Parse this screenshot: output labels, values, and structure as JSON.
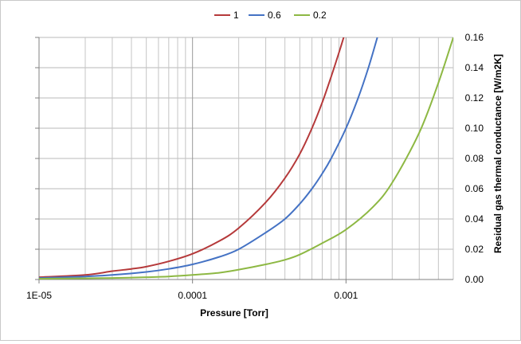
{
  "chart_data": {
    "type": "line",
    "title": "",
    "xlabel": "Pressure [Torr]",
    "ylabel": "Residual gas thermal conductance  [W/m2K]",
    "x_scale": "log",
    "xlim": [
      1e-05,
      0.005
    ],
    "ylim": [
      0,
      0.16
    ],
    "x_ticks": [
      {
        "value": 1e-05,
        "label": "1E-05"
      },
      {
        "value": 0.0001,
        "label": "0.0001"
      },
      {
        "value": 0.001,
        "label": "0.001"
      }
    ],
    "y_ticks": [
      {
        "value": 0.0,
        "label": "0.00"
      },
      {
        "value": 0.02,
        "label": "0.02"
      },
      {
        "value": 0.04,
        "label": "0.04"
      },
      {
        "value": 0.06,
        "label": "0.06"
      },
      {
        "value": 0.08,
        "label": "0.08"
      },
      {
        "value": 0.1,
        "label": "0.10"
      },
      {
        "value": 0.12,
        "label": "0.12"
      },
      {
        "value": 0.14,
        "label": "0.14"
      },
      {
        "value": 0.16,
        "label": "0.16"
      }
    ],
    "grid": true,
    "legend_position": "top-center",
    "y_axis_side": "right",
    "series": [
      {
        "name": "1",
        "color": "#b5393a",
        "points": [
          [
            1e-05,
            0.0015
          ],
          [
            2e-05,
            0.003
          ],
          [
            3e-05,
            0.0055
          ],
          [
            4e-05,
            0.007
          ],
          [
            5e-05,
            0.0085
          ],
          [
            7e-05,
            0.012
          ],
          [
            0.0001,
            0.017
          ],
          [
            0.00015,
            0.0255
          ],
          [
            0.0002,
            0.034
          ],
          [
            0.0003,
            0.051
          ],
          [
            0.0004,
            0.067
          ],
          [
            0.0005,
            0.083
          ],
          [
            0.0006,
            0.1
          ],
          [
            0.0007,
            0.117
          ],
          [
            0.0008,
            0.134
          ],
          [
            0.0009,
            0.15
          ],
          [
            0.001,
            0.165
          ]
        ]
      },
      {
        "name": "0.6",
        "color": "#4472c4",
        "points": [
          [
            1e-05,
            0.001
          ],
          [
            2e-05,
            0.002
          ],
          [
            3e-05,
            0.003
          ],
          [
            5e-05,
            0.005
          ],
          [
            7e-05,
            0.007
          ],
          [
            0.0001,
            0.01
          ],
          [
            0.00015,
            0.015
          ],
          [
            0.0002,
            0.02
          ],
          [
            0.0003,
            0.031
          ],
          [
            0.0004,
            0.04
          ],
          [
            0.0005,
            0.05
          ],
          [
            0.0006,
            0.06
          ],
          [
            0.0007,
            0.07
          ],
          [
            0.0008,
            0.08
          ],
          [
            0.001,
            0.1
          ],
          [
            0.0012,
            0.12
          ],
          [
            0.0014,
            0.14
          ],
          [
            0.0016,
            0.16
          ]
        ]
      },
      {
        "name": "0.2",
        "color": "#8db843",
        "points": [
          [
            1e-05,
            0.0005
          ],
          [
            2e-05,
            0.0008
          ],
          [
            3e-05,
            0.001
          ],
          [
            5e-05,
            0.0015
          ],
          [
            7e-05,
            0.002
          ],
          [
            0.0001,
            0.003
          ],
          [
            0.00015,
            0.0045
          ],
          [
            0.0002,
            0.0065
          ],
          [
            0.0003,
            0.01
          ],
          [
            0.0004,
            0.013
          ],
          [
            0.0005,
            0.0165
          ],
          [
            0.0007,
            0.024
          ],
          [
            0.001,
            0.033
          ],
          [
            0.0015,
            0.048
          ],
          [
            0.002,
            0.064
          ],
          [
            0.003,
            0.097
          ],
          [
            0.004,
            0.13
          ],
          [
            0.005,
            0.16
          ]
        ]
      }
    ]
  }
}
